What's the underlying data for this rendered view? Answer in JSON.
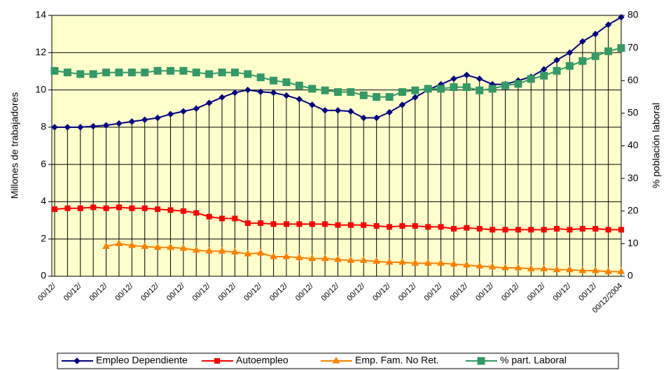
{
  "chart_data": {
    "type": "line",
    "categories": [
      "00/12/",
      null,
      "00/12/",
      null,
      "00/12/",
      null,
      "00/12/",
      null,
      "00/12/",
      null,
      "00/12/",
      null,
      "00/12/",
      null,
      "00/12/",
      null,
      "00/12/",
      null,
      "00/12/",
      null,
      "00/12/",
      null,
      "00/12/",
      null,
      "00/12/",
      null,
      "00/12/",
      null,
      "00/12/",
      null,
      "00/12/",
      null,
      "00/12/",
      null,
      "00/12/",
      null,
      "00/12/",
      null,
      "00/12/",
      null,
      "00/12/",
      null,
      "00/12/",
      null,
      "00/12/2004"
    ],
    "y_label": "Millones de trabajadores",
    "y2_label": "% población laboral",
    "ylim": [
      0,
      14
    ],
    "yticks": [
      0,
      2,
      4,
      6,
      8,
      10,
      12,
      14
    ],
    "y2lim": [
      0,
      80
    ],
    "y2ticks": [
      0,
      10,
      20,
      30,
      40,
      50,
      60,
      70,
      80
    ],
    "grid": true,
    "legend": "bottom",
    "background": "#ffffcc",
    "series": [
      {
        "name": "Empleo Dependiente",
        "color": "#000080",
        "marker": "diamond",
        "values": [
          8.0,
          8.0,
          8.0,
          8.05,
          8.1,
          8.2,
          8.3,
          8.4,
          8.5,
          8.7,
          8.85,
          9.0,
          9.3,
          9.6,
          9.85,
          10.0,
          9.9,
          9.85,
          9.7,
          9.5,
          9.2,
          8.9,
          8.9,
          8.85,
          8.5,
          8.5,
          8.8,
          9.2,
          9.6,
          10.0,
          10.3,
          10.6,
          10.8,
          10.6,
          10.3,
          10.3,
          10.5,
          10.7,
          11.1,
          11.6,
          12.0,
          12.6,
          13.0,
          13.5,
          13.9
        ]
      },
      {
        "name": "Autoempleo",
        "color": "#ff0000",
        "marker": "square",
        "values": [
          3.6,
          3.65,
          3.65,
          3.7,
          3.65,
          3.7,
          3.65,
          3.65,
          3.6,
          3.55,
          3.5,
          3.4,
          3.2,
          3.1,
          3.1,
          2.85,
          2.85,
          2.8,
          2.8,
          2.8,
          2.8,
          2.8,
          2.75,
          2.75,
          2.75,
          2.7,
          2.65,
          2.7,
          2.7,
          2.65,
          2.65,
          2.55,
          2.6,
          2.55,
          2.5,
          2.5,
          2.5,
          2.5,
          2.5,
          2.55,
          2.5,
          2.55,
          2.55,
          2.5,
          2.5
        ]
      },
      {
        "name": "Emp. Fam. No Ret.",
        "color": "#ff8000",
        "marker": "triangle",
        "values": [
          null,
          null,
          null,
          null,
          1.6,
          1.75,
          1.65,
          1.6,
          1.55,
          1.55,
          1.5,
          1.4,
          1.35,
          1.35,
          1.3,
          1.2,
          1.25,
          1.05,
          1.05,
          1.0,
          0.95,
          0.95,
          0.9,
          0.85,
          0.85,
          0.8,
          0.75,
          0.75,
          0.7,
          0.7,
          0.7,
          0.65,
          0.6,
          0.55,
          0.5,
          0.45,
          0.45,
          0.4,
          0.4,
          0.35,
          0.35,
          0.3,
          0.3,
          0.25,
          0.25
        ]
      },
      {
        "name": "% part. Laboral",
        "color": "#339966",
        "marker": "bigsquare",
        "axis": "y2",
        "values": [
          63,
          62.5,
          62,
          62,
          62.5,
          62.5,
          62.5,
          62.5,
          63,
          63,
          63,
          62.5,
          62,
          62.5,
          62.5,
          62,
          61,
          60,
          59.5,
          58.5,
          57.5,
          57,
          56.5,
          56.5,
          55.5,
          55,
          55,
          56.5,
          57,
          57.5,
          57.5,
          58,
          58,
          57,
          57.5,
          58.5,
          59,
          60.5,
          61.5,
          63,
          64.5,
          66,
          67.5,
          69,
          70
        ]
      }
    ]
  }
}
